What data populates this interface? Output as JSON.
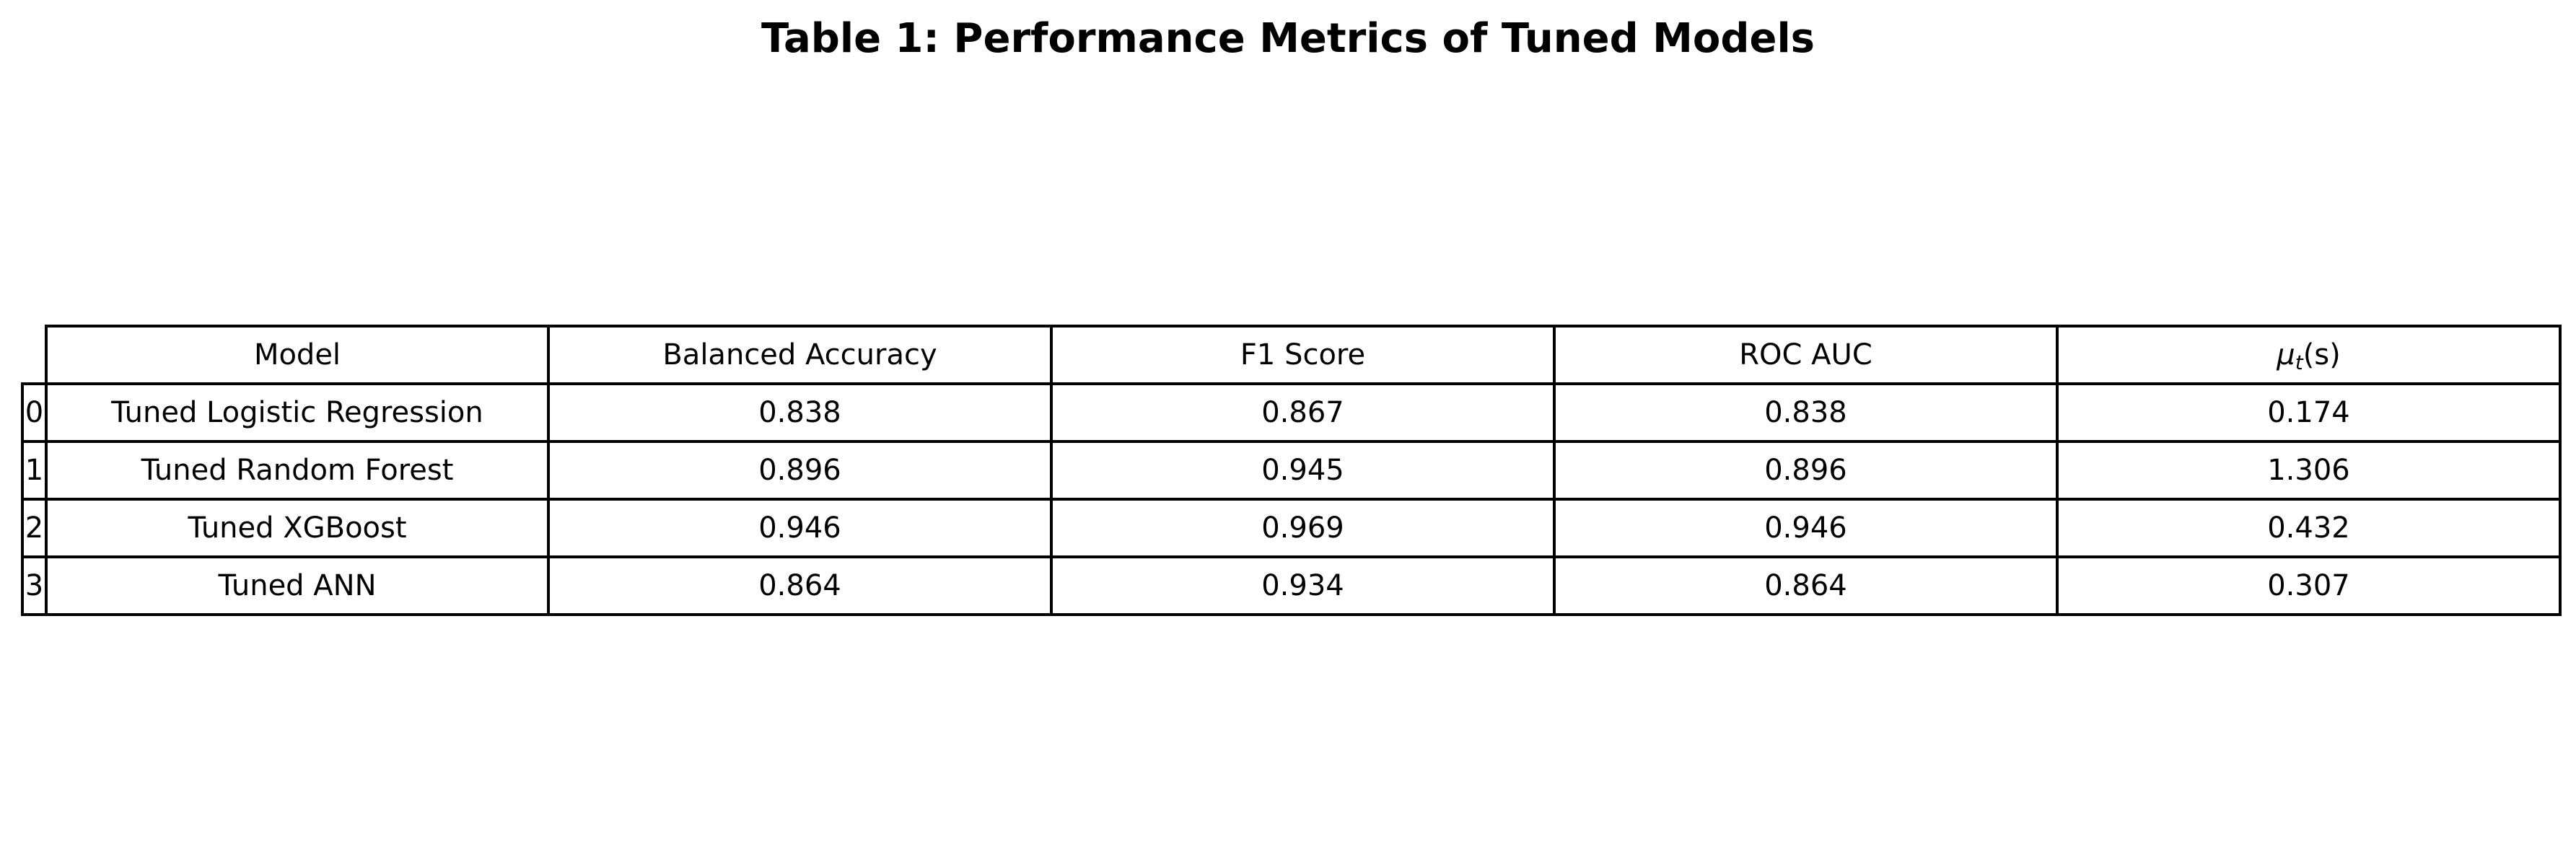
{
  "chart_data": {
    "type": "table",
    "title": "Table 1: Performance Metrics of Tuned Models",
    "columns": [
      "Model",
      "Balanced Accuracy",
      "F1 Score",
      "ROC AUC",
      "μt (s)"
    ],
    "row_index": [
      "0",
      "1",
      "2",
      "3"
    ],
    "rows": [
      [
        "Tuned Logistic Regression",
        "0.838",
        "0.867",
        "0.838",
        "0.174"
      ],
      [
        "Tuned Random Forest",
        "0.896",
        "0.945",
        "0.896",
        "1.306"
      ],
      [
        "Tuned XGBoost",
        "0.946",
        "0.969",
        "0.946",
        "0.432"
      ],
      [
        "Tuned ANN",
        "0.864",
        "0.934",
        "0.864",
        "0.307"
      ]
    ],
    "mu_header": {
      "symbol": "μ",
      "subscript": "t",
      "unit": " (s)"
    }
  }
}
